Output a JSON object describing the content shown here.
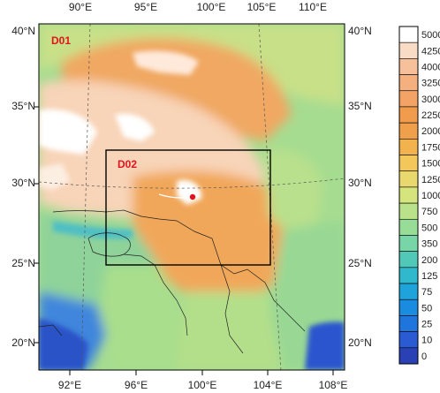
{
  "map": {
    "domain_labels": {
      "outer": "D01",
      "inner": "D02"
    },
    "lon_ticks_top": [
      "90°E",
      "95°E",
      "100°E",
      "105°E",
      "110°E"
    ],
    "lon_ticks_bottom": [
      "92°E",
      "96°E",
      "100°E",
      "104°E",
      "108°E"
    ],
    "lat_ticks": [
      "40°N",
      "35°N",
      "30°N",
      "25°N",
      "20°N"
    ],
    "colorbar_levels": [
      "5000",
      "4250",
      "4000",
      "3250",
      "3000",
      "2250",
      "2000",
      "1750",
      "1500",
      "1250",
      "1000",
      "750",
      "500",
      "350",
      "200",
      "125",
      "75",
      "50",
      "25",
      "10",
      "0"
    ],
    "colorbar_colors": [
      "#ffffff",
      "#f9dcc6",
      "#f6c09a",
      "#f5b07f",
      "#f3a366",
      "#f19b4d",
      "#f0a04a",
      "#f2b24e",
      "#f3c75a",
      "#e9d86e",
      "#d5e47c",
      "#b9e28a",
      "#97dd98",
      "#77d5a8",
      "#52c9b8",
      "#30b8cc",
      "#1ea4db",
      "#1a8ce0",
      "#2075dc",
      "#2a5bd3",
      "#2a40b5"
    ],
    "colors": {
      "border": "#000000",
      "label_red": "#e0141c",
      "ocean": "#2c55cf",
      "plateau_white": "#ffffff",
      "plateau_pink": "#f8d6bd",
      "high_orange": "#f0a25a",
      "mid_green": "#b7e28a",
      "lowland_green": "#9edb8e"
    }
  }
}
